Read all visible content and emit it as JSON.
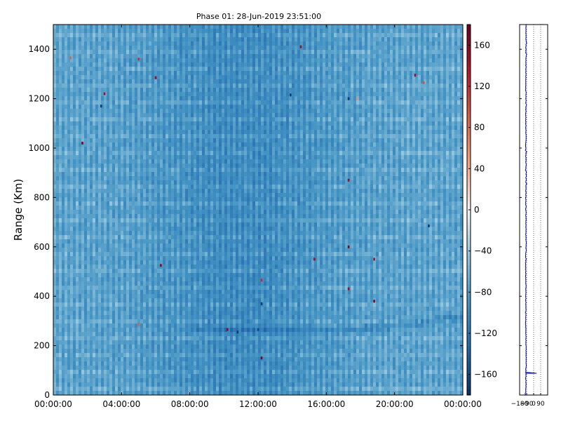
{
  "chart_data": [
    {
      "type": "heatmap",
      "title": "Phase 01: 28-Jun-2019 23:51:00",
      "xlabel": "",
      "ylabel": "Range (Km)",
      "xlim": [
        0,
        24
      ],
      "xtick_labels": [
        "00:00:00",
        "04:00:00",
        "08:00:00",
        "12:00:00",
        "16:00:00",
        "20:00:00",
        "00:00:00"
      ],
      "ylim": [
        0,
        1500
      ],
      "ytick_labels": [
        "0",
        "200",
        "400",
        "600",
        "800",
        "1000",
        "1200",
        "1400"
      ],
      "colorbar": {
        "range": [
          -180,
          180
        ],
        "tick_labels": [
          "−160",
          "−120",
          "−80",
          "−40",
          "0",
          "40",
          "80",
          "120",
          "160"
        ],
        "colormap": "RdBu_r"
      },
      "values_description": "Phase values mostly between -110 and -60 (light to mid blue), vertical striping every time column; a faint trace near 250-300 km after 08:00 and isolated outlier cells.",
      "outliers": [
        {
          "x": 1.0,
          "y": 1365,
          "v": 90
        },
        {
          "x": 5.0,
          "y": 1360,
          "v": 120
        },
        {
          "x": 6.0,
          "y": 1285,
          "v": 150
        },
        {
          "x": 3.0,
          "y": 1220,
          "v": 150
        },
        {
          "x": 2.8,
          "y": 1170,
          "v": -170
        },
        {
          "x": 1.7,
          "y": 1020,
          "v": 170
        },
        {
          "x": 14.5,
          "y": 1410,
          "v": 150
        },
        {
          "x": 13.9,
          "y": 1215,
          "v": -170
        },
        {
          "x": 17.3,
          "y": 1200,
          "v": -170
        },
        {
          "x": 17.8,
          "y": 1200,
          "v": 60
        },
        {
          "x": 17.3,
          "y": 870,
          "v": 150
        },
        {
          "x": 17.3,
          "y": 600,
          "v": 170
        },
        {
          "x": 15.3,
          "y": 550,
          "v": 150
        },
        {
          "x": 18.8,
          "y": 550,
          "v": 150
        },
        {
          "x": 6.3,
          "y": 525,
          "v": 160
        },
        {
          "x": 12.2,
          "y": 465,
          "v": 120
        },
        {
          "x": 12.2,
          "y": 370,
          "v": -170
        },
        {
          "x": 17.3,
          "y": 430,
          "v": 150
        },
        {
          "x": 18.8,
          "y": 380,
          "v": 170
        },
        {
          "x": 10.2,
          "y": 265,
          "v": 160
        },
        {
          "x": 10.8,
          "y": 255,
          "v": -170
        },
        {
          "x": 12.0,
          "y": 265,
          "v": -160
        },
        {
          "x": 12.2,
          "y": 150,
          "v": 170
        },
        {
          "x": 5.0,
          "y": 285,
          "v": 90
        },
        {
          "x": 21.2,
          "y": 1295,
          "v": 150
        },
        {
          "x": 21.7,
          "y": 1265,
          "v": 100
        },
        {
          "x": 22.0,
          "y": 685,
          "v": -170
        }
      ]
    },
    {
      "type": "line",
      "title": "",
      "xlabel": "",
      "ylabel": "",
      "xlim": [
        -180,
        180
      ],
      "xtick_labels": [
        "−180",
        "−90",
        "0",
        "90"
      ],
      "ylim": [
        0,
        1500
      ],
      "grid": "vertical dotted",
      "series": [
        {
          "color": "#0000cc",
          "profile": [
            {
              "y": 0,
              "x": -100
            },
            {
              "y": 50,
              "x": -98
            },
            {
              "y": 85,
              "x": -100
            },
            {
              "y": 88,
              "x": -100
            },
            {
              "y": 88,
              "x": 40
            },
            {
              "y": 92,
              "x": -100
            },
            {
              "y": 150,
              "x": -96
            },
            {
              "y": 300,
              "x": -102
            },
            {
              "y": 450,
              "x": -99
            },
            {
              "y": 520,
              "x": -103
            },
            {
              "y": 600,
              "x": -98
            },
            {
              "y": 800,
              "x": -100
            },
            {
              "y": 900,
              "x": -97
            },
            {
              "y": 1050,
              "x": -101
            },
            {
              "y": 1200,
              "x": -99
            },
            {
              "y": 1350,
              "x": -100
            },
            {
              "y": 1500,
              "x": -98
            }
          ]
        }
      ]
    }
  ]
}
